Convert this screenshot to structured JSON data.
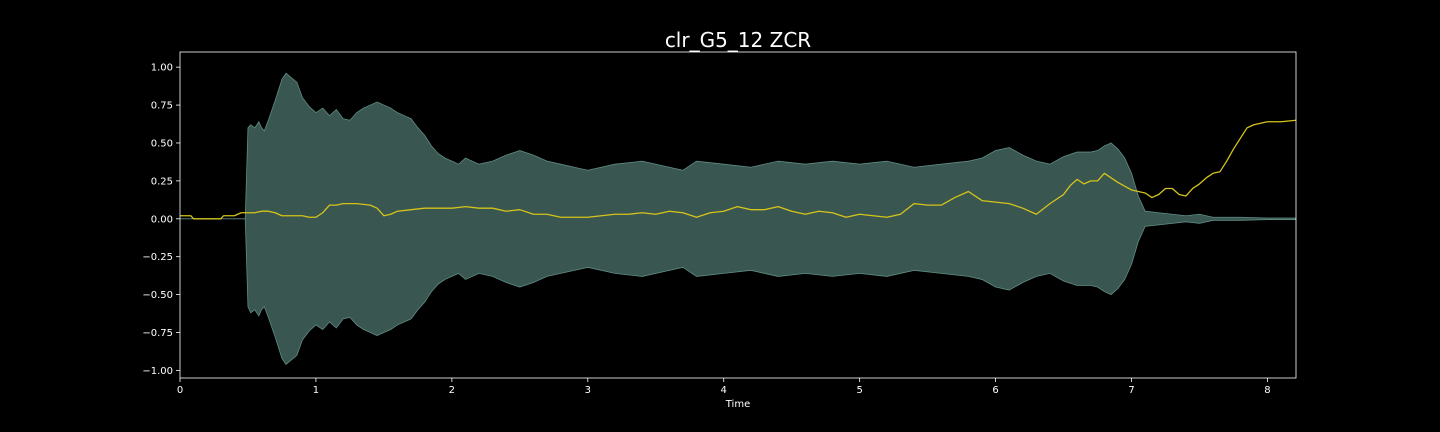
{
  "chart_data": {
    "type": "area",
    "title": "clr_G5_12 ZCR",
    "xlabel": "Time",
    "ylabel": "",
    "xlim": [
      0,
      8.21
    ],
    "ylim": [
      -1.05,
      1.1
    ],
    "x_ticks": [
      0,
      1,
      2,
      3,
      4,
      5,
      6,
      7,
      8
    ],
    "y_ticks": [
      -1.0,
      -0.75,
      -0.5,
      -0.25,
      0.0,
      0.25,
      0.5,
      0.75,
      1.0
    ],
    "y_tick_labels": [
      "−1.00",
      "−0.75",
      "−0.50",
      "−0.25",
      "0.00",
      "0.25",
      "0.50",
      "0.75",
      "1.00"
    ],
    "grid": false,
    "legend": "none",
    "colors": {
      "background": "#000000",
      "axes": "#ffffff",
      "text": "#ffffff",
      "waveform_fill": "#3a5651",
      "waveform_edge": "#5f8d84",
      "zcr_line": "#d4c41a"
    },
    "series": [
      {
        "type": "envelope",
        "x": [
          0,
          0.48,
          0.5,
          0.52,
          0.55,
          0.58,
          0.6,
          0.62,
          0.65,
          0.7,
          0.75,
          0.78,
          0.82,
          0.86,
          0.9,
          0.95,
          1.0,
          1.05,
          1.1,
          1.15,
          1.2,
          1.25,
          1.3,
          1.35,
          1.4,
          1.45,
          1.5,
          1.55,
          1.6,
          1.65,
          1.7,
          1.75,
          1.8,
          1.85,
          1.9,
          1.95,
          2.0,
          2.05,
          2.1,
          2.2,
          2.3,
          2.4,
          2.5,
          2.6,
          2.7,
          2.8,
          2.9,
          3.0,
          3.2,
          3.4,
          3.6,
          3.7,
          3.8,
          4.0,
          4.2,
          4.4,
          4.6,
          4.8,
          5.0,
          5.2,
          5.4,
          5.6,
          5.8,
          5.9,
          6.0,
          6.1,
          6.2,
          6.3,
          6.4,
          6.5,
          6.6,
          6.7,
          6.75,
          6.8,
          6.85,
          6.9,
          6.95,
          7.0,
          7.05,
          7.1,
          7.2,
          7.3,
          7.4,
          7.5,
          7.6,
          7.8,
          8.0,
          8.21
        ],
        "upper": [
          0.0,
          0.0,
          0.6,
          0.62,
          0.6,
          0.64,
          0.6,
          0.58,
          0.65,
          0.78,
          0.92,
          0.96,
          0.93,
          0.9,
          0.8,
          0.74,
          0.7,
          0.73,
          0.68,
          0.72,
          0.66,
          0.65,
          0.7,
          0.73,
          0.75,
          0.77,
          0.75,
          0.73,
          0.7,
          0.68,
          0.66,
          0.6,
          0.55,
          0.48,
          0.43,
          0.4,
          0.38,
          0.36,
          0.4,
          0.36,
          0.38,
          0.42,
          0.45,
          0.42,
          0.38,
          0.36,
          0.34,
          0.32,
          0.36,
          0.38,
          0.34,
          0.32,
          0.38,
          0.36,
          0.34,
          0.38,
          0.36,
          0.38,
          0.36,
          0.38,
          0.34,
          0.36,
          0.38,
          0.4,
          0.45,
          0.47,
          0.42,
          0.38,
          0.36,
          0.41,
          0.44,
          0.44,
          0.45,
          0.48,
          0.5,
          0.46,
          0.4,
          0.3,
          0.15,
          0.05,
          0.04,
          0.03,
          0.02,
          0.03,
          0.01,
          0.01,
          0.005,
          0.005
        ],
        "lower": [
          0.0,
          0.0,
          -0.58,
          -0.62,
          -0.6,
          -0.64,
          -0.6,
          -0.58,
          -0.65,
          -0.78,
          -0.92,
          -0.96,
          -0.93,
          -0.9,
          -0.8,
          -0.74,
          -0.7,
          -0.73,
          -0.68,
          -0.72,
          -0.66,
          -0.65,
          -0.7,
          -0.73,
          -0.75,
          -0.77,
          -0.75,
          -0.73,
          -0.7,
          -0.68,
          -0.66,
          -0.6,
          -0.55,
          -0.48,
          -0.43,
          -0.4,
          -0.38,
          -0.36,
          -0.4,
          -0.36,
          -0.38,
          -0.42,
          -0.45,
          -0.42,
          -0.38,
          -0.36,
          -0.34,
          -0.32,
          -0.36,
          -0.38,
          -0.34,
          -0.32,
          -0.38,
          -0.36,
          -0.34,
          -0.38,
          -0.36,
          -0.38,
          -0.36,
          -0.38,
          -0.34,
          -0.36,
          -0.38,
          -0.4,
          -0.45,
          -0.47,
          -0.42,
          -0.38,
          -0.36,
          -0.41,
          -0.44,
          -0.44,
          -0.45,
          -0.48,
          -0.5,
          -0.46,
          -0.4,
          -0.3,
          -0.15,
          -0.05,
          -0.04,
          -0.03,
          -0.02,
          -0.03,
          -0.01,
          -0.01,
          -0.005,
          -0.005
        ]
      },
      {
        "type": "line",
        "x": [
          0,
          0.08,
          0.1,
          0.2,
          0.3,
          0.32,
          0.4,
          0.45,
          0.5,
          0.55,
          0.6,
          0.65,
          0.7,
          0.75,
          0.8,
          0.9,
          0.95,
          1.0,
          1.05,
          1.1,
          1.15,
          1.2,
          1.3,
          1.4,
          1.45,
          1.5,
          1.55,
          1.6,
          1.7,
          1.8,
          1.85,
          1.9,
          2.0,
          2.1,
          2.2,
          2.3,
          2.4,
          2.5,
          2.6,
          2.7,
          2.8,
          2.9,
          3.0,
          3.1,
          3.2,
          3.3,
          3.4,
          3.5,
          3.6,
          3.7,
          3.8,
          3.9,
          4.0,
          4.1,
          4.2,
          4.3,
          4.4,
          4.5,
          4.6,
          4.7,
          4.8,
          4.9,
          5.0,
          5.1,
          5.2,
          5.3,
          5.4,
          5.5,
          5.6,
          5.7,
          5.8,
          5.9,
          6.0,
          6.1,
          6.2,
          6.3,
          6.4,
          6.5,
          6.55,
          6.6,
          6.65,
          6.7,
          6.75,
          6.8,
          6.9,
          7.0,
          7.05,
          7.1,
          7.15,
          7.2,
          7.25,
          7.3,
          7.35,
          7.4,
          7.45,
          7.5,
          7.55,
          7.6,
          7.65,
          7.7,
          7.75,
          7.8,
          7.85,
          7.9,
          8.0,
          8.1,
          8.21
        ],
        "y": [
          0.02,
          0.02,
          0.0,
          0.0,
          0.0,
          0.02,
          0.02,
          0.04,
          0.04,
          0.04,
          0.05,
          0.05,
          0.04,
          0.02,
          0.02,
          0.02,
          0.01,
          0.01,
          0.04,
          0.09,
          0.09,
          0.1,
          0.1,
          0.09,
          0.07,
          0.02,
          0.03,
          0.05,
          0.06,
          0.07,
          0.07,
          0.07,
          0.07,
          0.08,
          0.07,
          0.07,
          0.05,
          0.06,
          0.03,
          0.03,
          0.01,
          0.01,
          0.01,
          0.02,
          0.03,
          0.03,
          0.04,
          0.03,
          0.05,
          0.04,
          0.01,
          0.04,
          0.05,
          0.08,
          0.06,
          0.06,
          0.08,
          0.05,
          0.03,
          0.05,
          0.04,
          0.01,
          0.03,
          0.02,
          0.01,
          0.03,
          0.1,
          0.09,
          0.09,
          0.14,
          0.18,
          0.12,
          0.11,
          0.1,
          0.07,
          0.03,
          0.1,
          0.16,
          0.22,
          0.26,
          0.23,
          0.25,
          0.25,
          0.3,
          0.24,
          0.19,
          0.18,
          0.17,
          0.14,
          0.16,
          0.2,
          0.2,
          0.16,
          0.15,
          0.2,
          0.23,
          0.27,
          0.3,
          0.31,
          0.38,
          0.46,
          0.53,
          0.6,
          0.62,
          0.64,
          0.64,
          0.65
        ]
      }
    ]
  }
}
